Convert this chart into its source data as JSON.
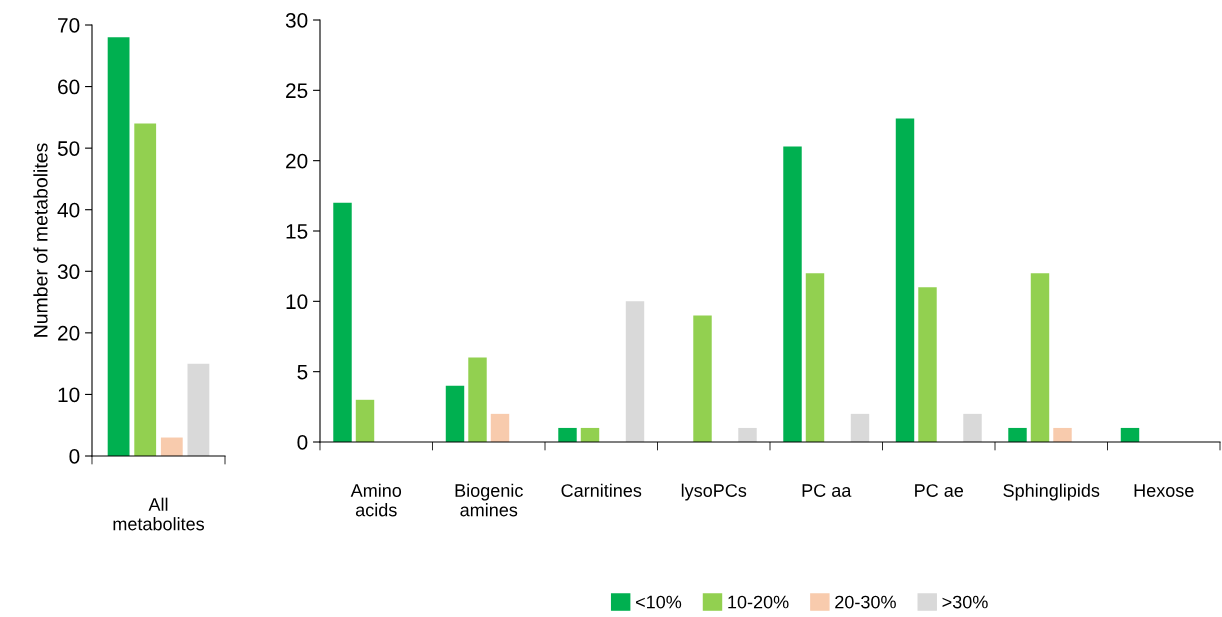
{
  "chart_data": [
    {
      "type": "bar",
      "ylabel": "Number of metabolites",
      "categories": [
        "All\nmetabolites"
      ],
      "ylim": [
        0,
        70
      ],
      "yticks": [
        0,
        10,
        20,
        30,
        40,
        50,
        60,
        70
      ],
      "grid": false,
      "series": [
        {
          "color": "#00b050",
          "values": [
            68
          ]
        },
        {
          "color": "#92d050",
          "values": [
            54
          ]
        },
        {
          "color": "#f8cbad",
          "values": [
            3
          ]
        },
        {
          "color": "#d9d9d9",
          "values": [
            15
          ]
        }
      ]
    },
    {
      "type": "bar",
      "categories": [
        "Amino\nacids",
        "Biogenic\namines",
        "Carnitines",
        "lysoPCs",
        "PC aa",
        "PC ae",
        "Sphinglipids",
        "Hexose"
      ],
      "ylim": [
        0,
        30
      ],
      "yticks": [
        0,
        5,
        10,
        15,
        20,
        25,
        30
      ],
      "grid": false,
      "legend": "bottom",
      "series": [
        {
          "name": "<10%",
          "color": "#00b050",
          "values": [
            17,
            4,
            1,
            null,
            21,
            23,
            1,
            1
          ]
        },
        {
          "name": "10-20%",
          "color": "#92d050",
          "values": [
            3,
            6,
            1,
            9,
            12,
            11,
            12,
            null
          ]
        },
        {
          "name": "20-30%",
          "color": "#f8cbad",
          "values": [
            null,
            2,
            null,
            null,
            null,
            null,
            1,
            null
          ]
        },
        {
          "name": ">30%",
          "color": "#d9d9d9",
          "values": [
            null,
            null,
            10,
            1,
            2,
            2,
            null,
            null
          ]
        }
      ]
    }
  ]
}
